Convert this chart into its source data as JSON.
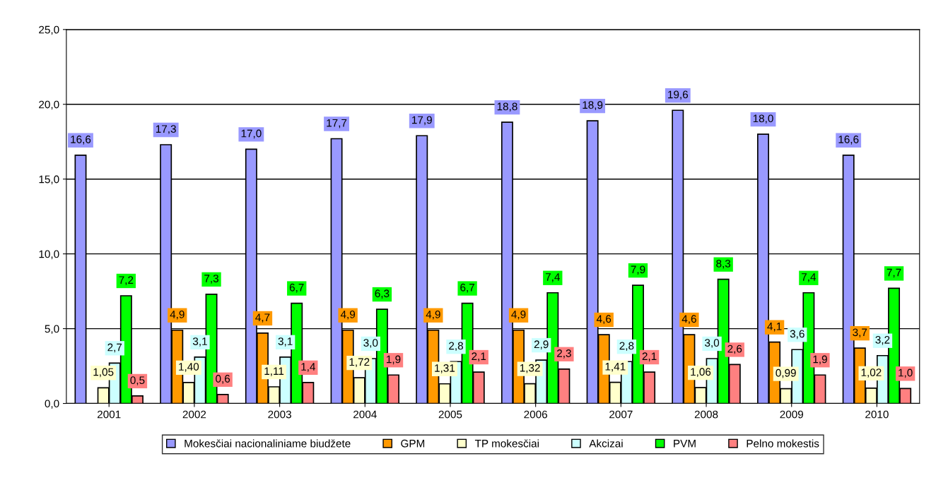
{
  "chart_data": {
    "type": "bar",
    "categories": [
      "2001",
      "2002",
      "2003",
      "2004",
      "2005",
      "2006",
      "2007",
      "2008",
      "2009",
      "2010"
    ],
    "series": [
      {
        "name": "Mokesčiai nacionaliniame biudžete",
        "color": "#9999ff",
        "values": [
          16.6,
          17.3,
          17.0,
          17.7,
          17.9,
          18.8,
          18.9,
          19.6,
          18.0,
          16.6
        ],
        "value_labels": [
          "16,6",
          "17,3",
          "17,0",
          "17,7",
          "17,9",
          "18,8",
          "18,9",
          "19,6",
          "18,0",
          "16,6"
        ]
      },
      {
        "name": "GPM",
        "color": "#ff9900",
        "values": [
          null,
          4.9,
          4.7,
          4.9,
          4.9,
          4.9,
          4.6,
          4.6,
          4.1,
          3.7
        ],
        "value_labels": [
          null,
          "4,9",
          "4,7",
          "4,9",
          "4,9",
          "4,9",
          "4,6",
          "4,6",
          "4,1",
          "3,7"
        ]
      },
      {
        "name": "TP mokesčiai",
        "color": "#ffffcc",
        "values": [
          1.05,
          1.4,
          1.11,
          1.72,
          1.31,
          1.32,
          1.41,
          1.06,
          0.99,
          1.02
        ],
        "value_labels": [
          "1,05",
          "1,40",
          "1,11",
          "1,72",
          "1,31",
          "1,32",
          "1,41",
          "1,06",
          "0,99",
          "1,02"
        ]
      },
      {
        "name": "Akcizai",
        "color": "#ccffff",
        "values": [
          2.7,
          3.1,
          3.1,
          3.0,
          2.8,
          2.9,
          2.8,
          3.0,
          3.6,
          3.2
        ],
        "value_labels": [
          "2,7",
          "3,1",
          "3,1",
          "3,0",
          "2,8",
          "2,9",
          "2,8",
          "3,0",
          "3,6",
          "3,2"
        ]
      },
      {
        "name": "PVM",
        "color": "#00ff00",
        "values": [
          7.2,
          7.3,
          6.7,
          6.3,
          6.7,
          7.4,
          7.9,
          8.3,
          7.4,
          7.7
        ],
        "value_labels": [
          "7,2",
          "7,3",
          "6,7",
          "6,3",
          "6,7",
          "7,4",
          "7,9",
          "8,3",
          "7,4",
          "7,7"
        ]
      },
      {
        "name": "Pelno mokestis",
        "color": "#ff8080",
        "values": [
          0.5,
          0.6,
          1.4,
          1.9,
          2.1,
          2.3,
          2.1,
          2.6,
          1.9,
          1.0
        ],
        "value_labels": [
          "0,5",
          "0,6",
          "1,4",
          "1,9",
          "2,1",
          "2,3",
          "2,1",
          "2,6",
          "1,9",
          "1,0"
        ]
      }
    ],
    "ylim": [
      0,
      25
    ],
    "yticks": [
      {
        "value": 0,
        "label": "0,0"
      },
      {
        "value": 5,
        "label": "5,0"
      },
      {
        "value": 10,
        "label": "10,0"
      },
      {
        "value": 15,
        "label": "15,0"
      },
      {
        "value": 20,
        "label": "20,0"
      },
      {
        "value": 25,
        "label": "25,0"
      }
    ],
    "grid": "y",
    "legend": "bottom"
  }
}
